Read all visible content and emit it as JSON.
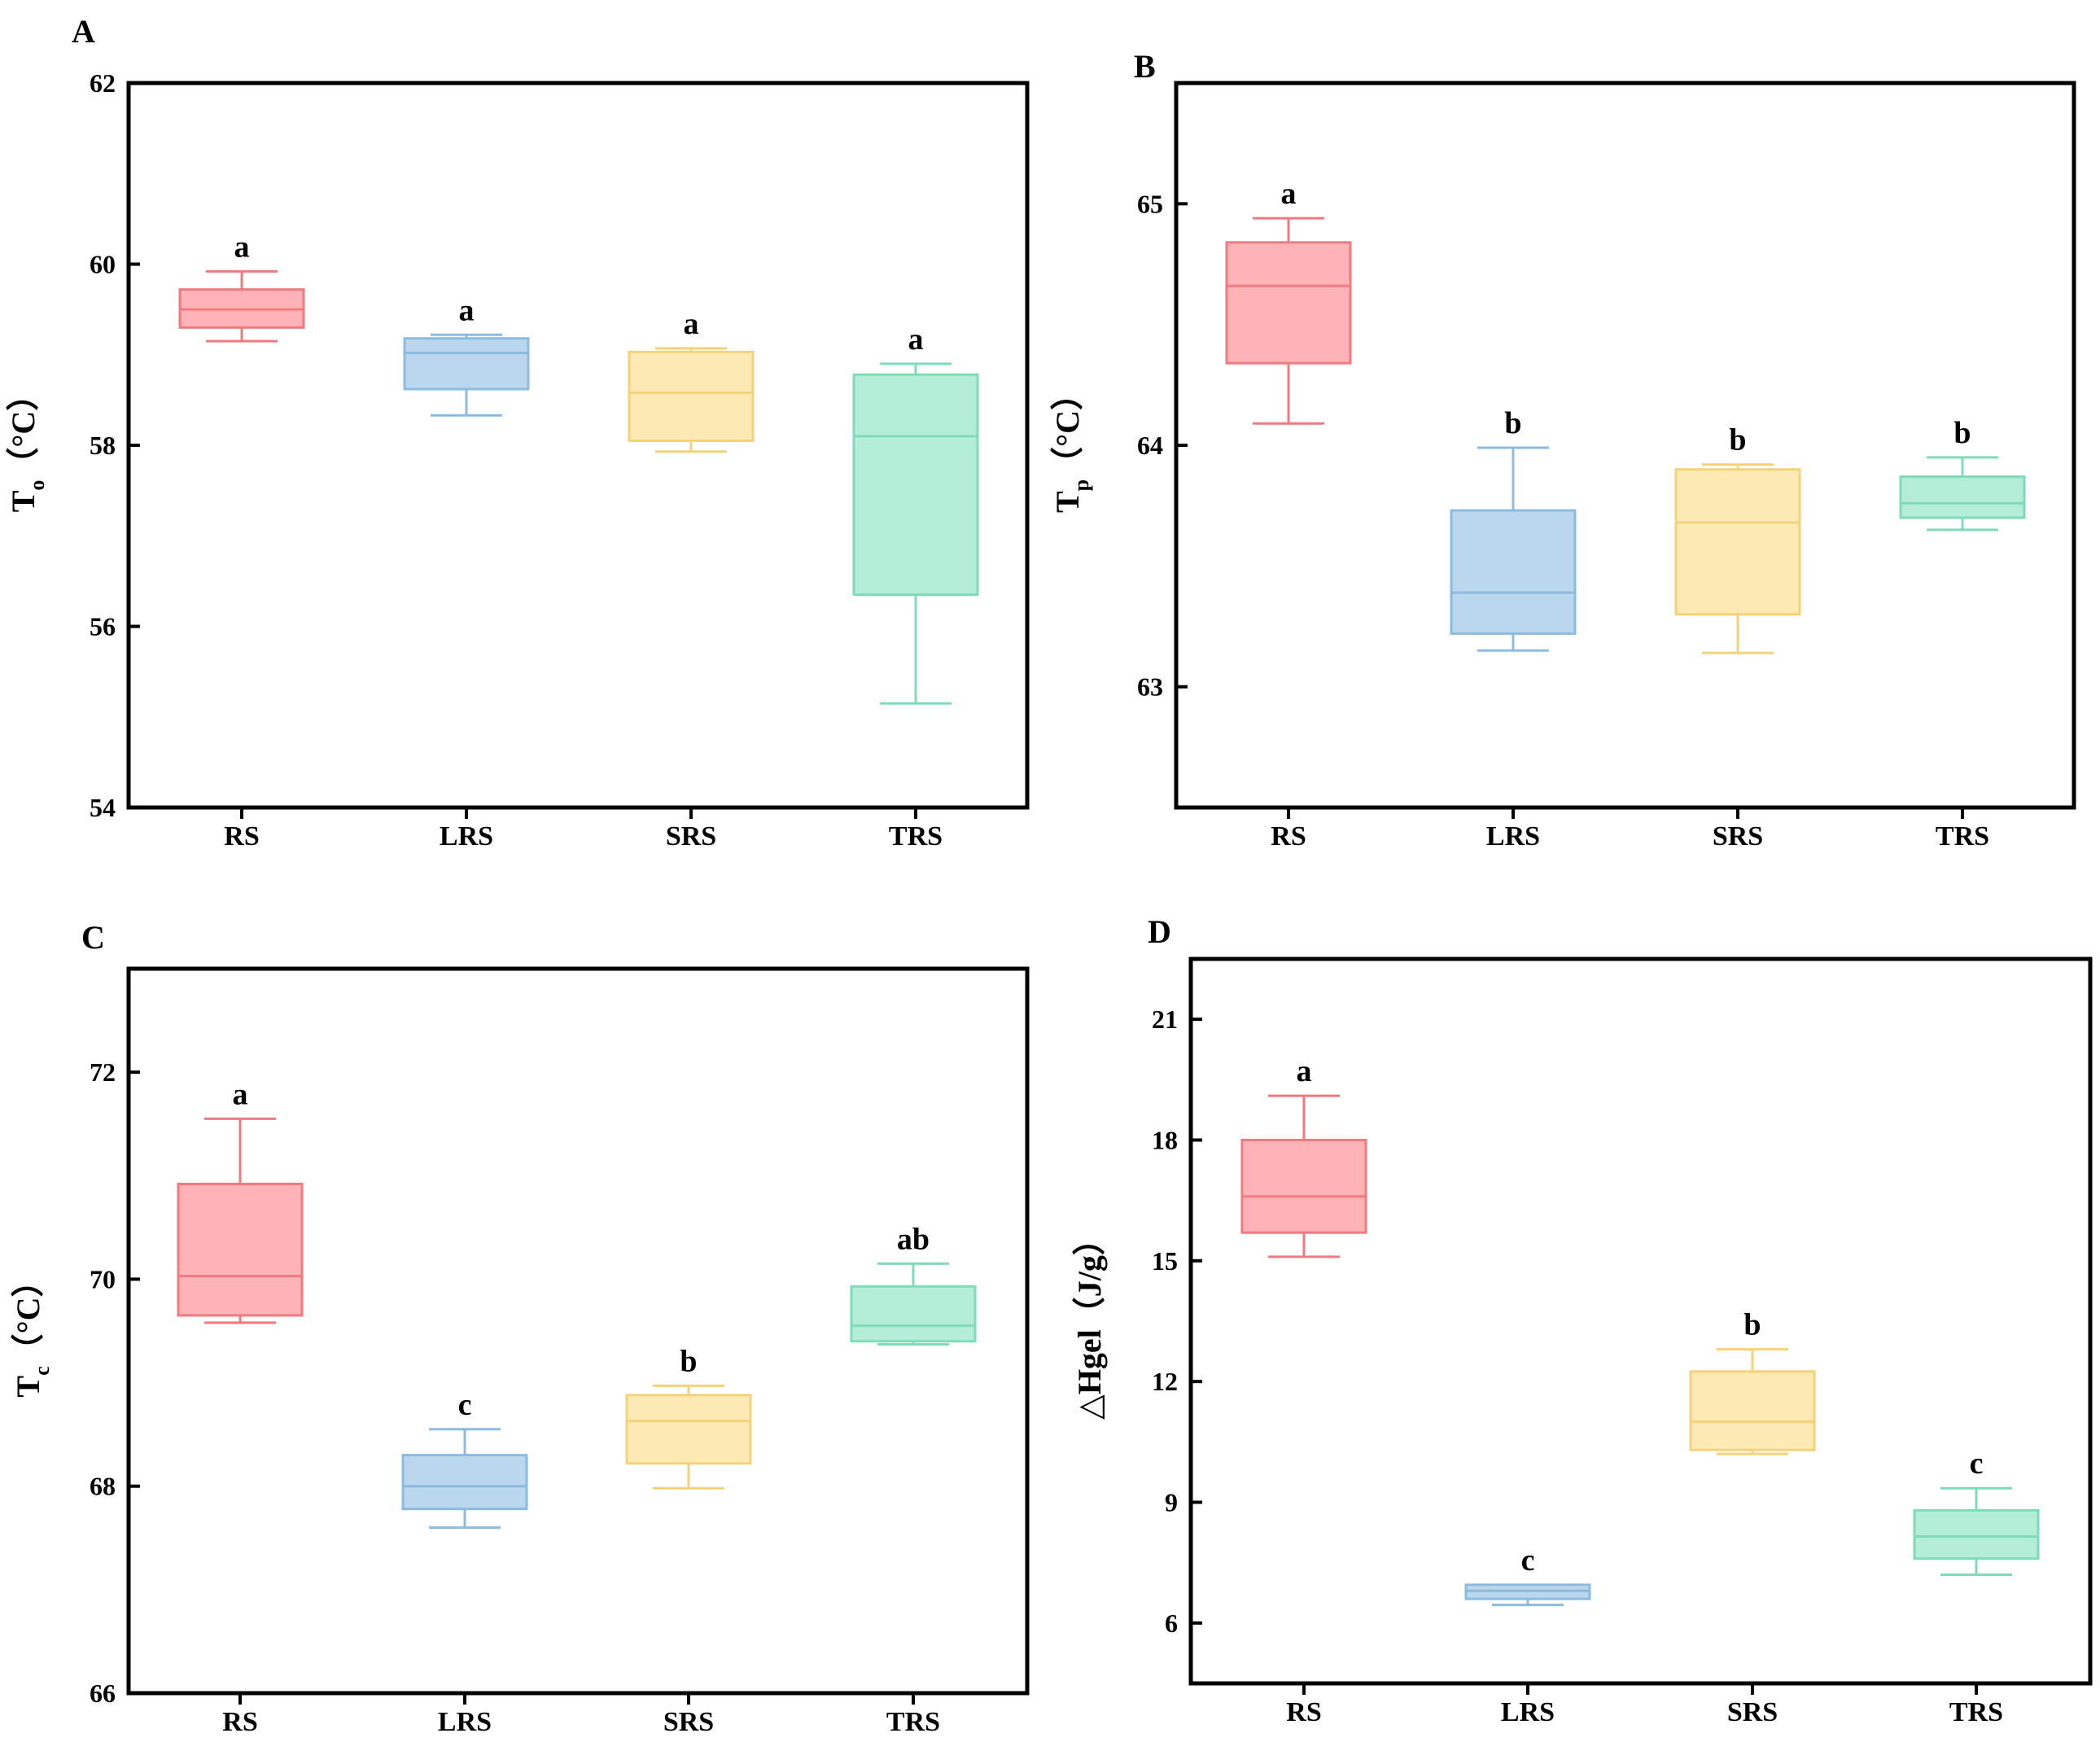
{
  "chart_data": [
    {
      "type": "box",
      "panel": "A",
      "ylabel": {
        "main": "T",
        "sub": "o",
        "unit": "（°C）"
      },
      "categories": [
        "RS",
        "LRS",
        "SRS",
        "TRS"
      ],
      "ylim": [
        54,
        62
      ],
      "yticks": [
        54,
        56,
        58,
        60,
        62
      ],
      "series": [
        {
          "name": "RS",
          "whisker_low": 59.15,
          "q1": 59.3,
          "median": 59.5,
          "q3": 59.72,
          "whisker_high": 59.92,
          "sig": "a"
        },
        {
          "name": "LRS",
          "whisker_low": 58.33,
          "q1": 58.62,
          "median": 59.02,
          "q3": 59.18,
          "whisker_high": 59.22,
          "sig": "a"
        },
        {
          "name": "SRS",
          "whisker_low": 57.93,
          "q1": 58.05,
          "median": 58.58,
          "q3": 59.03,
          "whisker_high": 59.07,
          "sig": "a"
        },
        {
          "name": "TRS",
          "whisker_low": 55.15,
          "q1": 56.35,
          "median": 58.1,
          "q3": 58.78,
          "whisker_high": 58.9,
          "sig": "a"
        }
      ]
    },
    {
      "type": "box",
      "panel": "B",
      "ylabel": {
        "main": "T",
        "sub": "p",
        "unit": "（°C）"
      },
      "categories": [
        "RS",
        "LRS",
        "SRS",
        "TRS"
      ],
      "ylim": [
        62.5,
        65.5
      ],
      "yticks": [
        63,
        64,
        65
      ],
      "series": [
        {
          "name": "RS",
          "whisker_low": 64.09,
          "q1": 64.34,
          "median": 64.66,
          "q3": 64.84,
          "whisker_high": 64.94,
          "sig": "a"
        },
        {
          "name": "LRS",
          "whisker_low": 63.15,
          "q1": 63.22,
          "median": 63.39,
          "q3": 63.73,
          "whisker_high": 63.99,
          "sig": "b"
        },
        {
          "name": "SRS",
          "whisker_low": 63.14,
          "q1": 63.3,
          "median": 63.68,
          "q3": 63.9,
          "whisker_high": 63.92,
          "sig": "b"
        },
        {
          "name": "TRS",
          "whisker_low": 63.65,
          "q1": 63.7,
          "median": 63.76,
          "q3": 63.87,
          "whisker_high": 63.95,
          "sig": "b"
        }
      ]
    },
    {
      "type": "box",
      "panel": "C",
      "ylabel": {
        "main": "T",
        "sub": "c",
        "unit": "（°C）"
      },
      "categories": [
        "RS",
        "LRS",
        "SRS",
        "TRS"
      ],
      "ylim": [
        66,
        73
      ],
      "yticks": [
        66,
        68,
        70,
        72
      ],
      "series": [
        {
          "name": "RS",
          "whisker_low": 69.58,
          "q1": 69.65,
          "median": 70.03,
          "q3": 70.92,
          "whisker_high": 71.55,
          "sig": "a"
        },
        {
          "name": "LRS",
          "whisker_low": 67.6,
          "q1": 67.78,
          "median": 68.0,
          "q3": 68.3,
          "whisker_high": 68.55,
          "sig": "c"
        },
        {
          "name": "SRS",
          "whisker_low": 67.98,
          "q1": 68.22,
          "median": 68.63,
          "q3": 68.88,
          "whisker_high": 68.97,
          "sig": "b"
        },
        {
          "name": "TRS",
          "whisker_low": 69.37,
          "q1": 69.4,
          "median": 69.55,
          "q3": 69.93,
          "whisker_high": 70.15,
          "sig": "ab"
        }
      ]
    },
    {
      "type": "box",
      "panel": "D",
      "ylabel": {
        "main": "△Hgel",
        "sub": "",
        "unit": "（J/g）"
      },
      "categories": [
        "RS",
        "LRS",
        "SRS",
        "TRS"
      ],
      "ylim": [
        4.5,
        22.5
      ],
      "yticks": [
        6,
        9,
        12,
        15,
        18,
        21
      ],
      "series": [
        {
          "name": "RS",
          "whisker_low": 15.1,
          "q1": 15.7,
          "median": 16.6,
          "q3": 18.0,
          "whisker_high": 19.1,
          "sig": "a"
        },
        {
          "name": "LRS",
          "whisker_low": 6.45,
          "q1": 6.6,
          "median": 6.8,
          "q3": 6.95,
          "whisker_high": 6.95,
          "sig": "c"
        },
        {
          "name": "SRS",
          "whisker_low": 10.2,
          "q1": 10.3,
          "median": 11.0,
          "q3": 12.25,
          "whisker_high": 12.8,
          "sig": "b"
        },
        {
          "name": "TRS",
          "whisker_low": 7.2,
          "q1": 7.6,
          "median": 8.15,
          "q3": 8.8,
          "whisker_high": 9.35,
          "sig": "c"
        }
      ]
    }
  ],
  "palette": {
    "RS": {
      "fill": "#ffb3b6",
      "stroke": "#f07a80"
    },
    "LRS": {
      "fill": "#bad7ee",
      "stroke": "#8dbbe0"
    },
    "SRS": {
      "fill": "#fde9b4",
      "stroke": "#f4d27a"
    },
    "TRS": {
      "fill": "#b4eed8",
      "stroke": "#7fdbb8"
    }
  }
}
